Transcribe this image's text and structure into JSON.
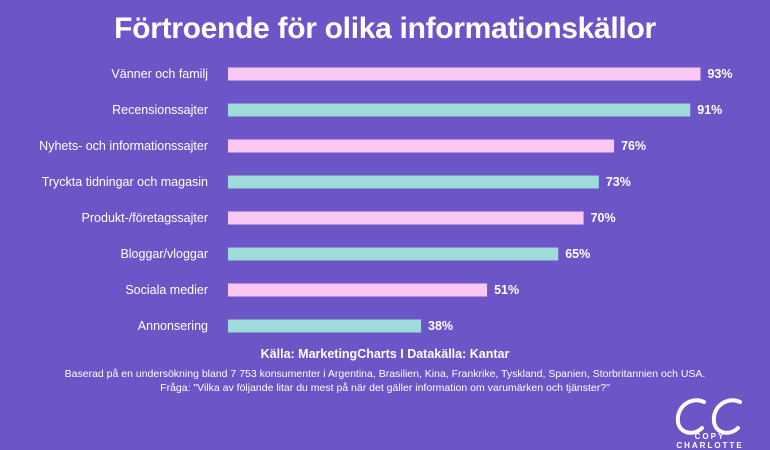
{
  "title": "Förtroende för olika informationskällor",
  "chart_data": {
    "type": "bar",
    "orientation": "horizontal",
    "title": "Förtroende för olika informationskällor",
    "categories": [
      "Vänner och familj",
      "Recensionssajter",
      "Nyhets- och informationssajter",
      "Tryckta tidningar och magasin",
      "Produkt-/företagssajter",
      "Bloggar/vloggar",
      "Sociala medier",
      "Annonsering"
    ],
    "values": [
      93,
      91,
      76,
      73,
      70,
      65,
      51,
      38
    ],
    "value_labels": [
      "93%",
      "91%",
      "76%",
      "73%",
      "70%",
      "65%",
      "51%",
      "38%"
    ],
    "unit": "%",
    "xlim": [
      0,
      100
    ],
    "grid": false,
    "bar_colors": [
      "#f9c8f3",
      "#9fdcd9"
    ]
  },
  "source": "Källa: MarketingCharts I Datakälla: Kantar",
  "note_line1": "Baserad på en undersökning bland 7 753 konsumenter i Argentina, Brasilien, Kina, Frankrike, Tyskland, Spanien, Storbritannien och USA.",
  "note_line2": "Fråga: \"Vilka av följande litar du mest på när det gäller information om varumärken och tjänster?\"",
  "logo_text": "COPY CHARLOTTE",
  "colors": {
    "background": "#6c55c6",
    "bar_pink": "#f9c8f3",
    "bar_teal": "#9fdcd9",
    "text": "#ffffff"
  }
}
